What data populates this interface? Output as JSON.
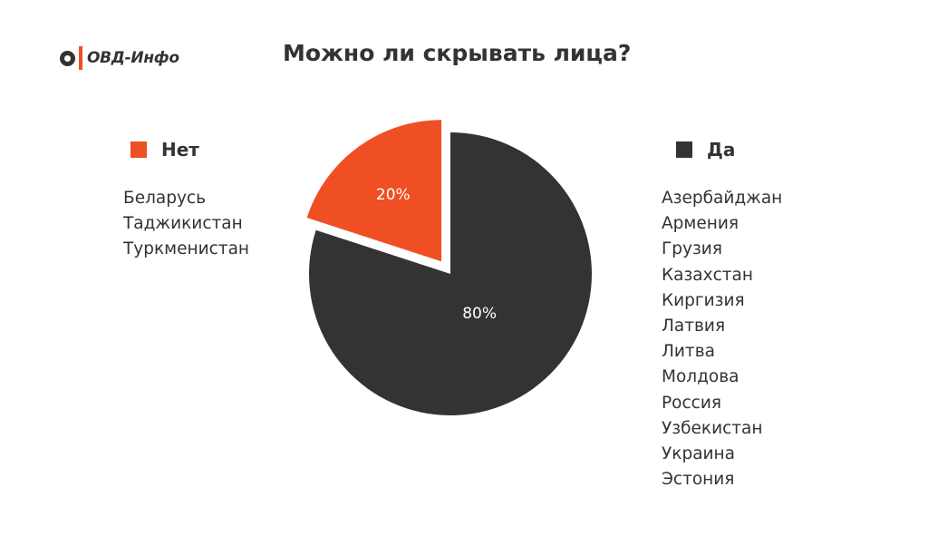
{
  "logo": {
    "text": "ОВД-Инфо",
    "accent_color": "#ef4f23"
  },
  "colors": {
    "no": "#ef4f23",
    "yes": "#333333"
  },
  "chart_data": {
    "type": "pie",
    "title": "Можно ли скрывать лица?",
    "slices": [
      {
        "label": "Нет",
        "value": 20,
        "value_label": "20%",
        "color": "#ef4f23",
        "exploded": true,
        "countries": [
          "Беларусь",
          "Таджикистан",
          "Туркменистан"
        ]
      },
      {
        "label": "Да",
        "value": 80,
        "value_label": "80%",
        "color": "#333333",
        "exploded": false,
        "countries": [
          "Азербайджан",
          "Армения",
          "Грузия",
          "Казахстан",
          "Киргизия",
          "Латвия",
          "Литва",
          "Молдова",
          "Россия",
          "Узбекистан",
          "Украина",
          "Эстония"
        ]
      }
    ]
  }
}
